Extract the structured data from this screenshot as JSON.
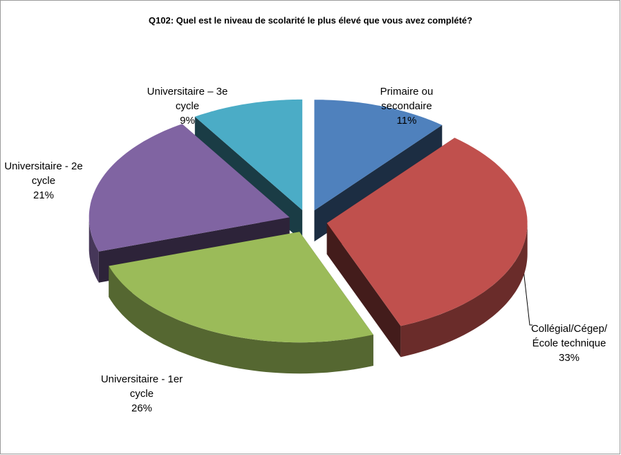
{
  "chart_data": {
    "type": "pie3d",
    "title": "Q102: Quel est le niveau de scolarité le plus élevé que vous avez complété?",
    "categories": [
      "Primaire ou secondaire",
      "Collégial/Cégep/ École technique",
      "Universitaire - 1er cycle",
      "Universitaire - 2e cycle",
      "Universitaire – 3e cycle"
    ],
    "values": [
      11,
      33,
      26,
      21,
      9
    ],
    "value_labels": [
      "11%",
      "33%",
      "26%",
      "21%",
      "9%"
    ],
    "colors": [
      "#4f81bd",
      "#c0504d",
      "#9bbb59",
      "#8064a2",
      "#4bacc6"
    ]
  }
}
